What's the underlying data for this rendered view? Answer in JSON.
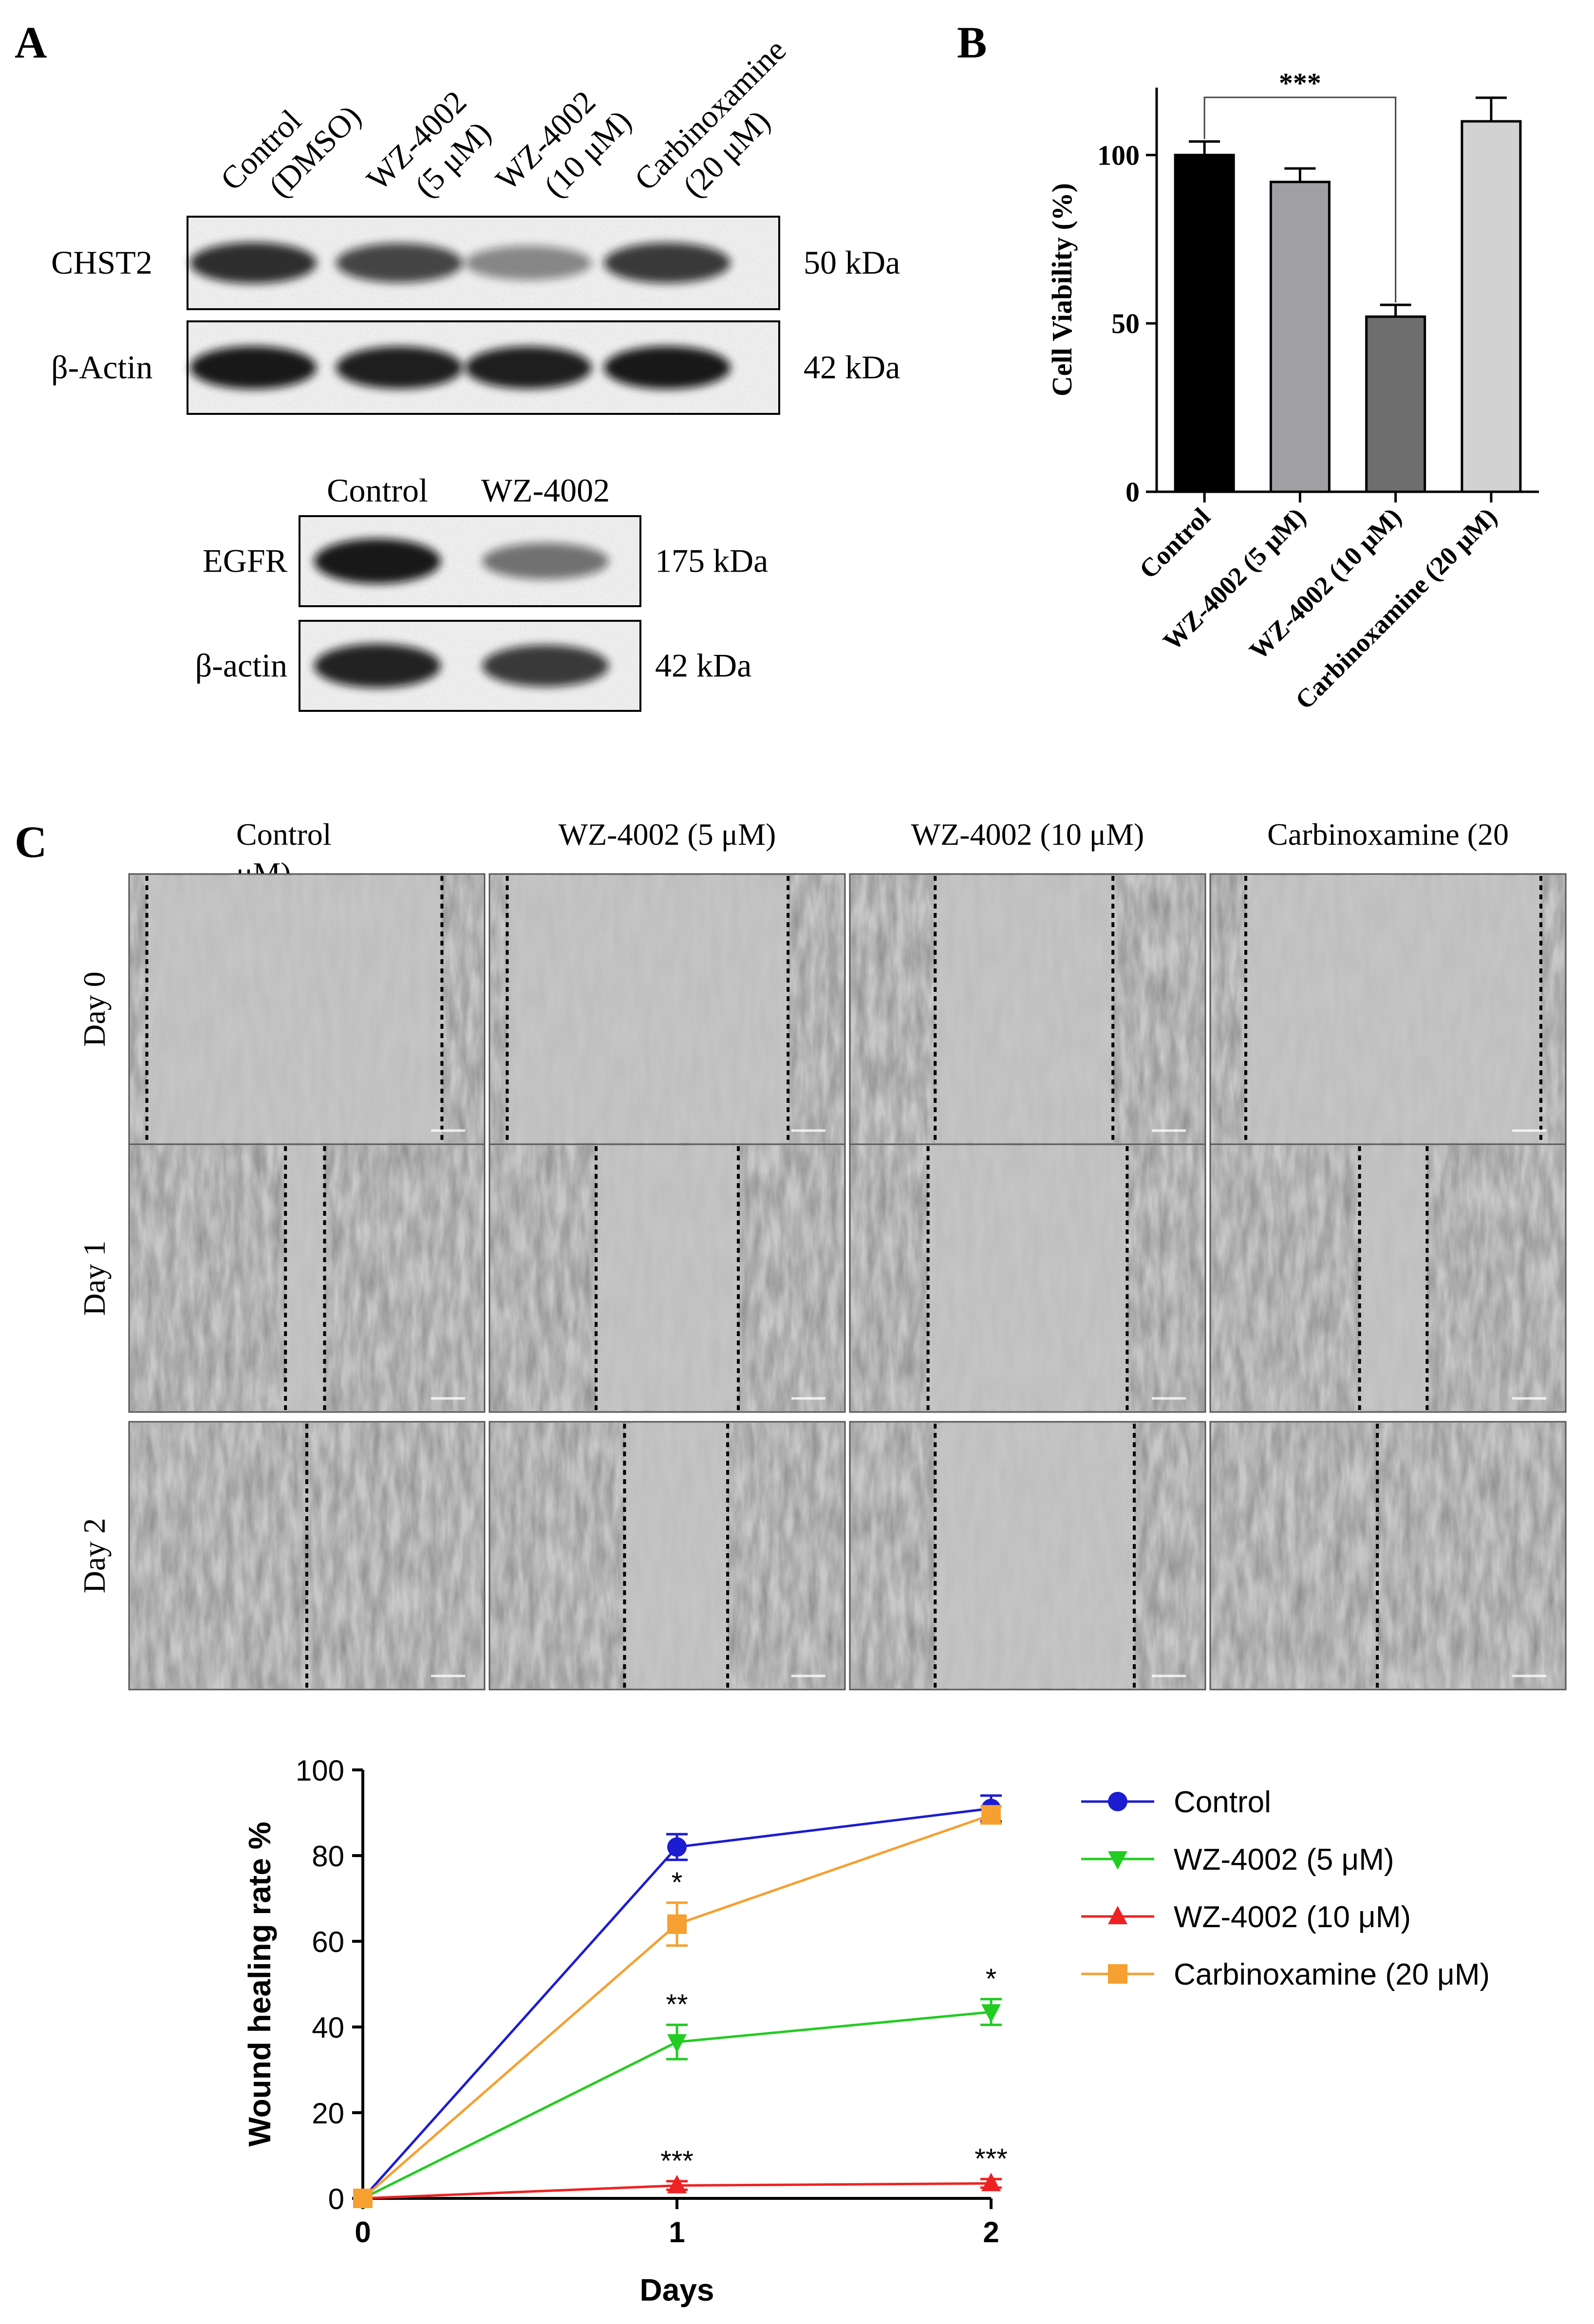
{
  "panels": {
    "a": "A",
    "b": "B",
    "c": "C"
  },
  "western_top": {
    "lane_labels": [
      [
        "Control",
        "(DMSO)"
      ],
      [
        "WZ-4002",
        "(5 μM)"
      ],
      [
        "WZ-4002",
        "(10 μM)"
      ],
      [
        "Carbinoxamine",
        "(20 μM)"
      ]
    ],
    "rows": [
      {
        "label": "CHST2",
        "kda": "50 kDa",
        "intensity": [
          0.85,
          0.75,
          0.45,
          0.8
        ]
      },
      {
        "label": "β-Actin",
        "kda": "42 kDa",
        "intensity": [
          0.95,
          0.92,
          0.92,
          0.95
        ]
      }
    ]
  },
  "western_bottom": {
    "lane_labels": [
      "Control",
      "WZ-4002"
    ],
    "rows": [
      {
        "label": "EGFR",
        "kda": "175 kDa",
        "intensity": [
          0.95,
          0.55
        ]
      },
      {
        "label": "β-actin",
        "kda": "42 kDa",
        "intensity": [
          0.9,
          0.8
        ]
      }
    ]
  },
  "viability_chart": {
    "type": "bar",
    "ylabel": "Cell Viability (%)",
    "yticks": [
      0,
      50,
      100
    ],
    "ylim": [
      0,
      120
    ],
    "categories": [
      "Control",
      "WZ-4002 (5 μM)",
      "WZ-4002 (10 μM)",
      "Carbinoxamine (20 μM)"
    ],
    "values": [
      100,
      92,
      52,
      110
    ],
    "errors": [
      4,
      4,
      3.5,
      7
    ],
    "colors": [
      "#000000",
      "#a0a0a4",
      "#6e6e6e",
      "#d2d2d2"
    ],
    "significance": "***"
  },
  "microscopy": {
    "column_labels": [
      "Control",
      "WZ-4002 (5 μM)",
      "WZ-4002 (10 μM)",
      "Carbinoxamine (20"
    ],
    "column_label_continuation": "μM)",
    "row_labels": [
      "Day 0",
      "Day 1",
      "Day 2"
    ]
  },
  "wound_chart": {
    "type": "line",
    "xlabel": "Days",
    "ylabel": "Wound healing rate %",
    "x": [
      0,
      1,
      2
    ],
    "xticks": [
      0,
      1,
      2
    ],
    "yticks": [
      0,
      20,
      40,
      60,
      80,
      100
    ],
    "ylim": [
      0,
      100
    ],
    "series": [
      {
        "name": "Control",
        "values": [
          0,
          82,
          91
        ],
        "errors": [
          0,
          3,
          3
        ],
        "color": "#1c1cd0",
        "marker": "circle",
        "stars": [
          "",
          "",
          ""
        ]
      },
      {
        "name": "WZ-4002 (5 μM)",
        "values": [
          0,
          36.5,
          43.5
        ],
        "errors": [
          0,
          4,
          3
        ],
        "color": "#22cc22",
        "marker": "triangle-down",
        "stars": [
          "",
          "**",
          "*"
        ]
      },
      {
        "name": "WZ-4002 (10 μM)",
        "values": [
          0,
          3,
          3.5
        ],
        "errors": [
          0,
          1,
          1
        ],
        "color": "#ee2222",
        "marker": "triangle-up",
        "stars": [
          "",
          "***",
          "***"
        ]
      },
      {
        "name": "Carbinoxamine (20 μM)",
        "values": [
          0,
          64,
          89.5
        ],
        "errors": [
          0,
          5,
          2
        ],
        "color": "#f5a030",
        "marker": "square",
        "stars": [
          "",
          "*",
          ""
        ]
      }
    ]
  }
}
